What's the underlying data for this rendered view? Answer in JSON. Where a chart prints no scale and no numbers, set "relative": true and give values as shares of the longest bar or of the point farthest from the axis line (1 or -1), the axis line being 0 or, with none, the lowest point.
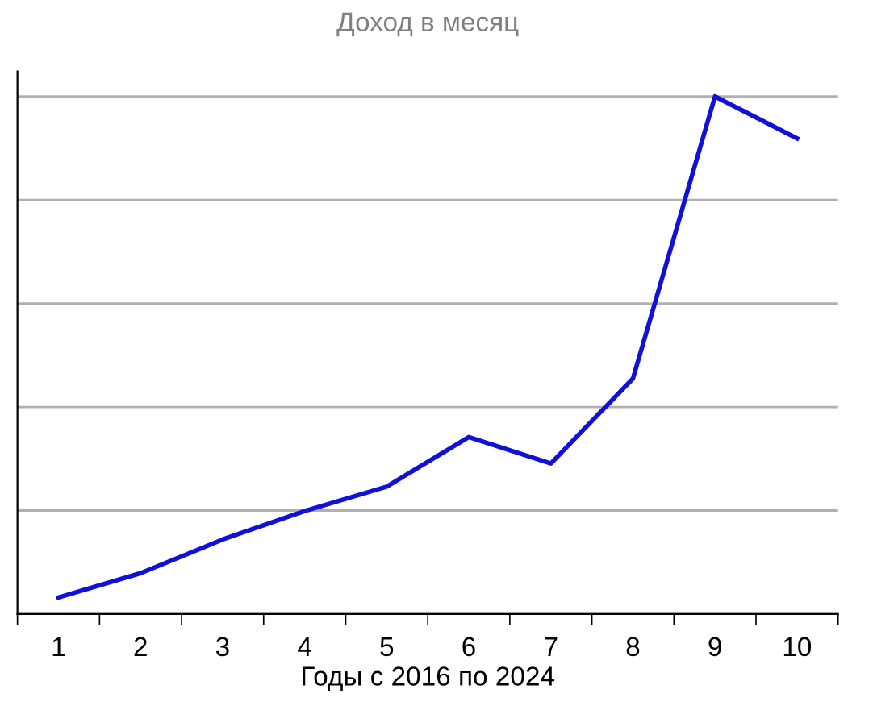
{
  "chart_data": {
    "type": "line",
    "title": "Доход в месяц",
    "xlabel": "Годы с 2016 по 2024",
    "categories": [
      "1",
      "2",
      "3",
      "4",
      "5",
      "6",
      "7",
      "8",
      "9",
      "10"
    ],
    "series": [
      {
        "color": "#1010d8",
        "values": [
          0.032,
          0.079,
          0.144,
          0.199,
          0.246,
          0.342,
          0.291,
          0.455,
          1,
          0.919
        ]
      }
    ],
    "relative": true,
    "grid": "y",
    "legend": false,
    "marker": "none",
    "line_style": "solid"
  }
}
